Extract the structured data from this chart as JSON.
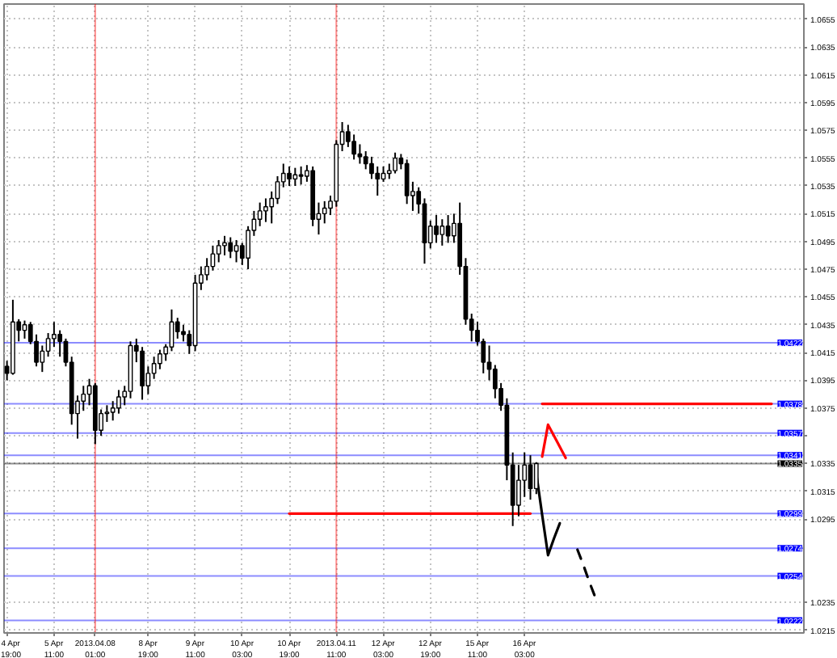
{
  "chart_data": {
    "type": "candlestick",
    "color": "#000000",
    "categories": [
      "4 Apr 19:00",
      null,
      null,
      null,
      null,
      null,
      null,
      null,
      "5 Apr 11:00",
      null,
      null,
      null,
      null,
      null,
      null,
      "2013.04.08 01:00",
      null,
      null,
      null,
      null,
      null,
      null,
      null,
      null,
      "8 Apr 19:00",
      null,
      null,
      null,
      null,
      null,
      null,
      null,
      "9 Apr 11:00",
      null,
      null,
      null,
      null,
      null,
      null,
      null,
      "10 Apr 03:00",
      null,
      null,
      null,
      null,
      null,
      null,
      null,
      "10 Apr 19:00",
      null,
      null,
      null,
      null,
      null,
      null,
      null,
      "2013.04.11 11:00",
      null,
      null,
      null,
      null,
      null,
      null,
      null,
      "12 Apr 03:00",
      null,
      null,
      null,
      null,
      null,
      null,
      null,
      "12 Apr 19:00",
      null,
      null,
      null,
      null,
      null,
      null,
      null,
      "15 Apr 11:00",
      null,
      null,
      null,
      null,
      null,
      null,
      null,
      "16 Apr 03:00",
      null,
      null,
      null,
      null,
      null,
      null,
      null,
      null,
      null,
      null,
      null,
      null,
      null,
      null,
      null,
      null,
      null,
      null,
      null,
      null,
      null,
      null,
      null,
      null,
      null,
      null,
      null,
      null,
      null,
      null,
      null,
      null,
      null,
      null,
      null,
      null,
      null,
      null,
      null,
      null,
      null,
      null,
      null,
      null,
      null,
      null,
      null
    ],
    "ohlc": [
      [
        1.0405,
        1.0409,
        1.0395,
        1.04
      ],
      [
        1.04,
        1.0453,
        1.0399,
        1.0437
      ],
      [
        1.0437,
        1.0439,
        1.0423,
        1.0431
      ],
      [
        1.0431,
        1.0438,
        1.0425,
        1.0435
      ],
      [
        1.0435,
        1.0437,
        1.0421,
        1.0423
      ],
      [
        1.0423,
        1.0428,
        1.0405,
        1.0408
      ],
      [
        1.0408,
        1.042,
        1.0401,
        1.0416
      ],
      [
        1.0416,
        1.0429,
        1.0412,
        1.0425
      ],
      [
        1.0425,
        1.0437,
        1.0419,
        1.0428
      ],
      [
        1.0428,
        1.0431,
        1.0412,
        1.0423
      ],
      [
        1.0423,
        1.0425,
        1.0405,
        1.0408
      ],
      [
        1.0408,
        1.0412,
        1.0363,
        1.0371
      ],
      [
        1.0371,
        1.0384,
        1.0353,
        1.038
      ],
      [
        1.038,
        1.0391,
        1.0373,
        1.0385
      ],
      [
        1.0385,
        1.0396,
        1.0377,
        1.0391
      ],
      [
        1.0391,
        1.0393,
        1.0349,
        1.0359
      ],
      [
        1.0359,
        1.0374,
        1.0355,
        1.0371
      ],
      [
        1.0371,
        1.0377,
        1.0365,
        1.0372
      ],
      [
        1.0372,
        1.038,
        1.0366,
        1.0375
      ],
      [
        1.0375,
        1.0388,
        1.0371,
        1.0383
      ],
      [
        1.0383,
        1.0391,
        1.0377,
        1.0387
      ],
      [
        1.0387,
        1.0423,
        1.0382,
        1.042
      ],
      [
        1.042,
        1.0425,
        1.0408,
        1.0416
      ],
      [
        1.0416,
        1.0419,
        1.0381,
        1.0391
      ],
      [
        1.0391,
        1.0405,
        1.0385,
        1.04
      ],
      [
        1.04,
        1.0412,
        1.0396,
        1.0407
      ],
      [
        1.0407,
        1.0417,
        1.0403,
        1.0414
      ],
      [
        1.0414,
        1.0421,
        1.0409,
        1.0419
      ],
      [
        1.0419,
        1.0446,
        1.0416,
        1.0437
      ],
      [
        1.0437,
        1.044,
        1.0425,
        1.043
      ],
      [
        1.043,
        1.0435,
        1.0423,
        1.0428
      ],
      [
        1.0428,
        1.0431,
        1.0414,
        1.042
      ],
      [
        1.042,
        1.0471,
        1.0416,
        1.0465
      ],
      [
        1.0465,
        1.0477,
        1.046,
        1.0471
      ],
      [
        1.0471,
        1.0483,
        1.0467,
        1.0477
      ],
      [
        1.0477,
        1.0492,
        1.0474,
        1.0486
      ],
      [
        1.0486,
        1.0496,
        1.048,
        1.0492
      ],
      [
        1.0492,
        1.0499,
        1.0485,
        1.0494
      ],
      [
        1.0494,
        1.0498,
        1.0483,
        1.0488
      ],
      [
        1.0488,
        1.0496,
        1.048,
        1.0492
      ],
      [
        1.0492,
        1.0494,
        1.0478,
        1.0483
      ],
      [
        1.0483,
        1.0506,
        1.0475,
        1.0503
      ],
      [
        1.0503,
        1.0517,
        1.0499,
        1.0511
      ],
      [
        1.0511,
        1.0523,
        1.0506,
        1.0517
      ],
      [
        1.0517,
        1.0526,
        1.0509,
        1.052
      ],
      [
        1.052,
        1.0531,
        1.0508,
        1.0526
      ],
      [
        1.0526,
        1.0542,
        1.0522,
        1.0538
      ],
      [
        1.0538,
        1.0551,
        1.0534,
        1.0544
      ],
      [
        1.0544,
        1.0549,
        1.0535,
        1.054
      ],
      [
        1.054,
        1.0548,
        1.0535,
        1.0543
      ],
      [
        1.0543,
        1.0549,
        1.0536,
        1.0542
      ],
      [
        1.0542,
        1.055,
        1.0538,
        1.0546
      ],
      [
        1.0546,
        1.0549,
        1.0506,
        1.0511
      ],
      [
        1.0511,
        1.0523,
        1.05,
        1.0515
      ],
      [
        1.0515,
        1.0524,
        1.0508,
        1.0519
      ],
      [
        1.0519,
        1.0528,
        1.0514,
        1.0524
      ],
      [
        1.0524,
        1.0568,
        1.052,
        1.0565
      ],
      [
        1.0565,
        1.0581,
        1.056,
        1.0574
      ],
      [
        1.0574,
        1.0579,
        1.0563,
        1.0567
      ],
      [
        1.0567,
        1.0572,
        1.0554,
        1.0558
      ],
      [
        1.0558,
        1.0565,
        1.0551,
        1.0556
      ],
      [
        1.0556,
        1.056,
        1.0547,
        1.0551
      ],
      [
        1.0551,
        1.0556,
        1.054,
        1.0544
      ],
      [
        1.0544,
        1.0549,
        1.0528,
        1.054
      ],
      [
        1.054,
        1.0549,
        1.0538,
        1.0544
      ],
      [
        1.0544,
        1.0551,
        1.054,
        1.0546
      ],
      [
        1.0546,
        1.0559,
        1.0544,
        1.0555
      ],
      [
        1.0555,
        1.0558,
        1.0547,
        1.0551
      ],
      [
        1.0551,
        1.0554,
        1.0522,
        1.0528
      ],
      [
        1.0528,
        1.0538,
        1.0517,
        1.0531
      ],
      [
        1.0531,
        1.0534,
        1.0515,
        1.0522
      ],
      [
        1.0522,
        1.0526,
        1.0479,
        1.0494
      ],
      [
        1.0494,
        1.051,
        1.049,
        1.0506
      ],
      [
        1.0506,
        1.0514,
        1.0494,
        1.05
      ],
      [
        1.05,
        1.0511,
        1.0492,
        1.0506
      ],
      [
        1.0506,
        1.0514,
        1.0494,
        1.0499
      ],
      [
        1.0499,
        1.0515,
        1.0494,
        1.0508
      ],
      [
        1.0508,
        1.0523,
        1.0471,
        1.0477
      ],
      [
        1.0477,
        1.0483,
        1.0435,
        1.0439
      ],
      [
        1.0439,
        1.0443,
        1.0423,
        1.0431
      ],
      [
        1.0431,
        1.0437,
        1.042,
        1.0423
      ],
      [
        1.0423,
        1.0425,
        1.04,
        1.0408
      ],
      [
        1.0408,
        1.042,
        1.0395,
        1.0403
      ],
      [
        1.0403,
        1.0406,
        1.0382,
        1.0389
      ],
      [
        1.0389,
        1.0393,
        1.0373,
        1.0377
      ],
      [
        1.0377,
        1.0382,
        1.0323,
        1.0334
      ],
      [
        1.0334,
        1.0343,
        1.029,
        1.0305
      ],
      [
        1.0305,
        1.0334,
        1.0297,
        1.0323
      ],
      [
        1.0323,
        1.0343,
        1.0311,
        1.0334
      ],
      [
        1.0334,
        1.0341,
        1.0309,
        1.0317
      ],
      [
        1.0317,
        1.0336,
        1.0313,
        1.0335
      ],
      null,
      null,
      null,
      null,
      null,
      null,
      null,
      null,
      null,
      null,
      null,
      null,
      null,
      null,
      null,
      null,
      null,
      null,
      null,
      null,
      null,
      null,
      null,
      null,
      null,
      null,
      null,
      null,
      null,
      null,
      null,
      null,
      null,
      null,
      null,
      null,
      null,
      null,
      null,
      null,
      null,
      null,
      null,
      null,
      null
    ],
    "series": [
      {
        "type": "line",
        "color": "#ff0000",
        "values": [
          null,
          null,
          null,
          null,
          null,
          null,
          null,
          null,
          null,
          null,
          null,
          null,
          null,
          null,
          null,
          null,
          null,
          null,
          null,
          null,
          null,
          null,
          null,
          null,
          null,
          null,
          null,
          null,
          null,
          null,
          null,
          null,
          null,
          null,
          null,
          null,
          null,
          null,
          null,
          null,
          null,
          null,
          null,
          null,
          null,
          null,
          null,
          null,
          1.0299,
          1.0299,
          1.0299,
          1.0299,
          1.0299,
          1.0299,
          1.0299,
          1.0299,
          1.0299,
          1.0299,
          1.0299,
          1.0299,
          1.0299,
          1.0299,
          1.0299,
          1.0299,
          1.0299,
          1.0299,
          1.0299,
          1.0299,
          1.0299,
          1.0299,
          1.0299,
          1.0299,
          1.0299,
          1.0299,
          1.0299,
          1.0299,
          1.0299,
          1.0299,
          1.0299,
          1.0299,
          1.0299,
          1.0299,
          1.0299,
          1.0299,
          1.0299,
          1.0299,
          1.0299,
          1.0299,
          1.0299,
          1.0299,
          null,
          null,
          null,
          null,
          null,
          null,
          null,
          null,
          null,
          null,
          null,
          null,
          null,
          null,
          null,
          null,
          null,
          null,
          null,
          null,
          null,
          null,
          null,
          null,
          null,
          null,
          null,
          null,
          null,
          null,
          null,
          null,
          null,
          null,
          null,
          null,
          null,
          null,
          null,
          null,
          null,
          null,
          null,
          null,
          null,
          null
        ]
      },
      {
        "type": "line",
        "color": "#ff0000",
        "values": [
          null,
          null,
          null,
          null,
          null,
          null,
          null,
          null,
          null,
          null,
          null,
          null,
          null,
          null,
          null,
          null,
          null,
          null,
          null,
          null,
          null,
          null,
          null,
          null,
          null,
          null,
          null,
          null,
          null,
          null,
          null,
          null,
          null,
          null,
          null,
          null,
          null,
          null,
          null,
          null,
          null,
          null,
          null,
          null,
          null,
          null,
          null,
          null,
          null,
          null,
          null,
          null,
          null,
          null,
          null,
          null,
          null,
          null,
          null,
          null,
          null,
          null,
          null,
          null,
          null,
          null,
          null,
          null,
          null,
          null,
          null,
          null,
          null,
          null,
          null,
          null,
          null,
          null,
          null,
          null,
          null,
          null,
          null,
          null,
          null,
          null,
          null,
          null,
          null,
          null,
          null,
          1.0378,
          1.0378,
          1.0378,
          1.0378,
          1.0378,
          1.0378,
          1.0378,
          1.0378,
          1.0378,
          1.0378,
          1.0378,
          1.0378,
          1.0378,
          1.0378,
          1.0378,
          1.0378,
          1.0378,
          1.0378,
          1.0378,
          1.0378,
          1.0378,
          1.0378,
          1.0378,
          1.0378,
          1.0378,
          1.0378,
          1.0378,
          1.0378,
          1.0378,
          1.0378,
          1.0378,
          1.0378,
          1.0378,
          1.0378,
          1.0378,
          1.0378,
          1.0378,
          1.0378,
          1.0378,
          1.0378,
          null,
          null,
          null,
          null,
          null
        ]
      },
      {
        "type": "line",
        "color": "#ff0000",
        "values": [
          null,
          null,
          null,
          null,
          null,
          null,
          null,
          null,
          null,
          null,
          null,
          null,
          null,
          null,
          null,
          null,
          null,
          null,
          null,
          null,
          null,
          null,
          null,
          null,
          null,
          null,
          null,
          null,
          null,
          null,
          null,
          null,
          null,
          null,
          null,
          null,
          null,
          null,
          null,
          null,
          null,
          null,
          null,
          null,
          null,
          null,
          null,
          null,
          null,
          null,
          null,
          null,
          null,
          null,
          null,
          null,
          null,
          null,
          null,
          null,
          null,
          null,
          null,
          null,
          null,
          null,
          null,
          null,
          null,
          null,
          null,
          null,
          null,
          null,
          null,
          null,
          null,
          null,
          null,
          null,
          null,
          null,
          null,
          null,
          null,
          null,
          null,
          null,
          null,
          null,
          null,
          1.034,
          1.0363,
          1.0355,
          1.0347,
          1.0339,
          null,
          null,
          null,
          null,
          null,
          null,
          null,
          null,
          null,
          null,
          null,
          null,
          null,
          null,
          null,
          null,
          null,
          null,
          null,
          null,
          null,
          null,
          null,
          null,
          null,
          null,
          null,
          null,
          null,
          null,
          null,
          null,
          null,
          null,
          null,
          null,
          null,
          null,
          null,
          null
        ]
      },
      {
        "type": "line",
        "color": "#000000",
        "values": [
          null,
          null,
          null,
          null,
          null,
          null,
          null,
          null,
          null,
          null,
          null,
          null,
          null,
          null,
          null,
          null,
          null,
          null,
          null,
          null,
          null,
          null,
          null,
          null,
          null,
          null,
          null,
          null,
          null,
          null,
          null,
          null,
          null,
          null,
          null,
          null,
          null,
          null,
          null,
          null,
          null,
          null,
          null,
          null,
          null,
          null,
          null,
          null,
          null,
          null,
          null,
          null,
          null,
          null,
          null,
          null,
          null,
          null,
          null,
          null,
          null,
          null,
          null,
          null,
          null,
          null,
          null,
          null,
          null,
          null,
          null,
          null,
          null,
          null,
          null,
          null,
          null,
          null,
          null,
          null,
          null,
          null,
          null,
          null,
          null,
          null,
          null,
          null,
          null,
          null,
          1.0328,
          1.0298,
          1.0269,
          1.0281,
          1.0292,
          null,
          null,
          null,
          null,
          null,
          null,
          null,
          null,
          null,
          null,
          null,
          null,
          null,
          null,
          null,
          null,
          null,
          null,
          null,
          null,
          null,
          null,
          null,
          null,
          null,
          null,
          null,
          null,
          null,
          null,
          null,
          null,
          null,
          null,
          null,
          null,
          null,
          null,
          null,
          null,
          null
        ]
      },
      {
        "type": "line",
        "color": "#000000",
        "line_style": "dashed",
        "values": [
          null,
          null,
          null,
          null,
          null,
          null,
          null,
          null,
          null,
          null,
          null,
          null,
          null,
          null,
          null,
          null,
          null,
          null,
          null,
          null,
          null,
          null,
          null,
          null,
          null,
          null,
          null,
          null,
          null,
          null,
          null,
          null,
          null,
          null,
          null,
          null,
          null,
          null,
          null,
          null,
          null,
          null,
          null,
          null,
          null,
          null,
          null,
          null,
          null,
          null,
          null,
          null,
          null,
          null,
          null,
          null,
          null,
          null,
          null,
          null,
          null,
          null,
          null,
          null,
          null,
          null,
          null,
          null,
          null,
          null,
          null,
          null,
          null,
          null,
          null,
          null,
          null,
          null,
          null,
          null,
          null,
          null,
          null,
          null,
          null,
          null,
          null,
          null,
          null,
          null,
          null,
          null,
          null,
          null,
          null,
          null,
          null,
          1.0273,
          1.0262,
          1.025,
          1.0239,
          null,
          null,
          null,
          null,
          null,
          null,
          null,
          null,
          null,
          null,
          null,
          null,
          null,
          null,
          null,
          null,
          null,
          null,
          null,
          null,
          null,
          null,
          null,
          null,
          null,
          null,
          null,
          null,
          null,
          null,
          null,
          null,
          null,
          null,
          null
        ]
      }
    ],
    "ylim": [
      1.0213,
      1.0666
    ],
    "yticks": [
      1.0215,
      1.0235,
      1.0295,
      1.0315,
      1.0335,
      {
        "value": 1.0355,
        "label": null
      },
      1.0375,
      1.0395,
      1.0415,
      1.0435,
      1.0455,
      1.0475,
      1.0495,
      1.0515,
      1.0535,
      1.0555,
      1.0575,
      1.0595,
      1.0615,
      1.0635,
      1.0655
    ],
    "grid": true,
    "ref_lines": [
      {
        "axis": "y",
        "value": 1.0422,
        "label": "1.0422",
        "color": "#0000ff"
      },
      {
        "axis": "y",
        "value": 1.0378,
        "label": "1.0378",
        "color": "#0000ff"
      },
      {
        "axis": "y",
        "value": 1.0357,
        "label": "1.0357",
        "color": "#0000ff"
      },
      {
        "axis": "y",
        "value": 1.0341,
        "label": "1.0341",
        "color": "#0000ff"
      },
      {
        "axis": "y",
        "value": 1.0335,
        "label": "1.0335",
        "color": "#000000"
      },
      {
        "axis": "y",
        "value": 1.0299,
        "label": "1.0299",
        "color": "#0000ff"
      },
      {
        "axis": "y",
        "value": 1.0274,
        "label": "1.0274",
        "color": "#0000ff"
      },
      {
        "axis": "y",
        "value": 1.0254,
        "label": "1.0254",
        "color": "#0000ff"
      },
      {
        "axis": "y",
        "value": 1.0222,
        "label": "1.0222",
        "color": "#0000ff"
      },
      {
        "axis": "x",
        "value": "2013.04.08 01:00",
        "color": "#ff0000"
      },
      {
        "axis": "x",
        "value": "2013.04.11 11:00",
        "color": "#ff0000"
      }
    ]
  }
}
